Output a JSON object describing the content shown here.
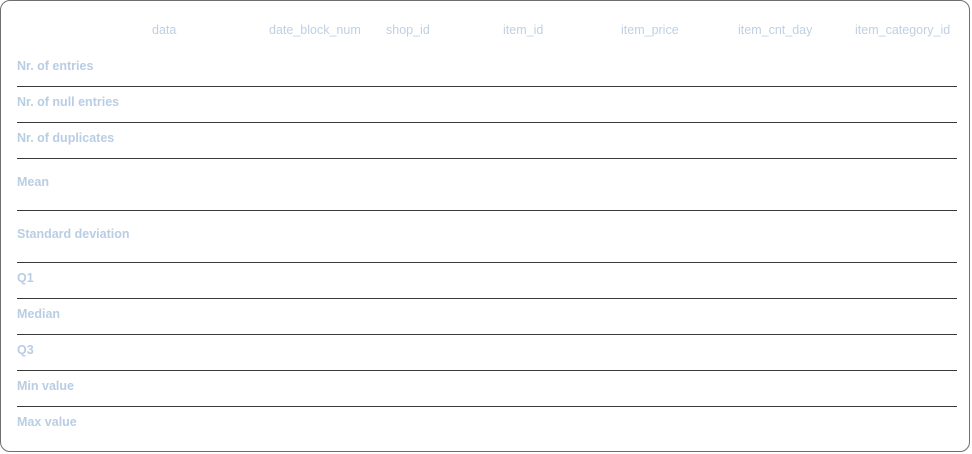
{
  "columns": [
    "data",
    "date_block_num",
    "shop_id",
    "item_id",
    "item_price",
    "item_cnt_day",
    "item_category_id"
  ],
  "rows": [
    "Nr. of entries",
    "Nr. of null entries",
    "Nr. of duplicates",
    "Mean",
    "Standard deviation",
    "Q1",
    "Median",
    "Q3",
    "Min value",
    "Max value"
  ],
  "colors": {
    "header_text": "#bfd0e3",
    "row_label_text": "#b9cde4",
    "divider": "#3a3a3a",
    "border": "#6f6f6f"
  }
}
